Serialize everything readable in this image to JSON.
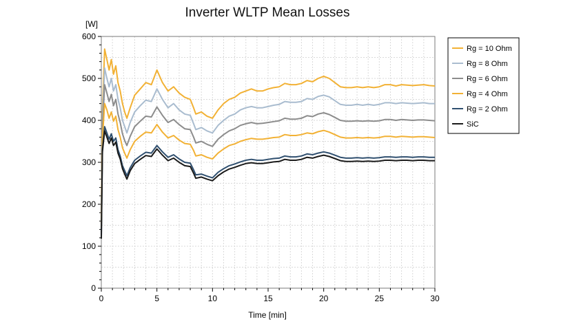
{
  "chart_data": {
    "type": "line",
    "title": "Inverter WLTP Mean Losses",
    "xlabel": "Time [min]",
    "ylabel": "[W]",
    "xlim": [
      0,
      30
    ],
    "ylim": [
      0,
      600
    ],
    "xticks": [
      "0",
      "5",
      "10",
      "15",
      "20",
      "25",
      "30"
    ],
    "yticks": [
      "0",
      "100",
      "200",
      "300",
      "400",
      "500",
      "600"
    ],
    "grid": true,
    "legend_position": "right",
    "x": [
      0,
      0.1,
      0.3,
      0.5,
      0.7,
      0.9,
      1.1,
      1.3,
      1.5,
      1.7,
      1.9,
      2.1,
      2.3,
      2.6,
      3,
      3.5,
      4,
      4.5,
      5,
      5.5,
      6,
      6.5,
      7,
      7.5,
      8,
      8.3,
      8.5,
      9,
      9.5,
      10,
      10.5,
      11,
      11.5,
      12,
      12.5,
      13,
      13.5,
      14,
      14.5,
      15,
      15.5,
      16,
      16.5,
      17,
      17.5,
      18,
      18.5,
      19,
      19.5,
      20,
      20.5,
      21,
      21.5,
      22,
      22.5,
      23,
      23.5,
      24,
      24.5,
      25,
      25.5,
      26,
      26.5,
      27,
      27.5,
      28,
      28.5,
      29,
      29.5,
      30
    ],
    "series": [
      {
        "name": "Rg = 10 Ohm",
        "color": "#f2b134",
        "values": [
          175,
          420,
          570,
          545,
          520,
          545,
          510,
          530,
          490,
          470,
          440,
          420,
          405,
          430,
          460,
          475,
          490,
          485,
          520,
          490,
          470,
          480,
          465,
          455,
          450,
          430,
          415,
          420,
          410,
          405,
          425,
          440,
          450,
          455,
          465,
          470,
          475,
          470,
          470,
          475,
          478,
          480,
          488,
          485,
          485,
          488,
          495,
          492,
          500,
          505,
          500,
          490,
          480,
          478,
          478,
          480,
          478,
          480,
          478,
          480,
          485,
          485,
          482,
          485,
          484,
          483,
          484,
          485,
          483,
          482
        ]
      },
      {
        "name": "Rg = 8 Ohm",
        "color": "#a9bccf",
        "values": [
          165,
          400,
          525,
          500,
          480,
          500,
          470,
          485,
          450,
          430,
          400,
          385,
          370,
          395,
          420,
          435,
          448,
          445,
          475,
          450,
          430,
          440,
          425,
          415,
          412,
          392,
          378,
          383,
          375,
          370,
          388,
          400,
          410,
          415,
          425,
          430,
          433,
          430,
          430,
          433,
          436,
          438,
          445,
          443,
          443,
          445,
          452,
          450,
          457,
          460,
          456,
          447,
          438,
          436,
          436,
          438,
          436,
          438,
          436,
          438,
          442,
          442,
          440,
          442,
          441,
          440,
          441,
          442,
          440,
          440
        ]
      },
      {
        "name": "Rg = 6 Ohm",
        "color": "#8c8c8c",
        "values": [
          155,
          380,
          485,
          465,
          445,
          462,
          435,
          450,
          415,
          395,
          368,
          352,
          340,
          362,
          385,
          398,
          410,
          408,
          432,
          412,
          395,
          402,
          390,
          380,
          378,
          360,
          346,
          350,
          343,
          338,
          355,
          366,
          375,
          380,
          388,
          392,
          395,
          392,
          393,
          395,
          397,
          399,
          405,
          403,
          403,
          405,
          411,
          409,
          415,
          418,
          414,
          407,
          400,
          398,
          398,
          399,
          398,
          399,
          398,
          399,
          402,
          402,
          400,
          402,
          401,
          400,
          401,
          401,
          400,
          399
        ]
      },
      {
        "name": "Rg = 4 Ohm",
        "color": "#f2b134",
        "values": [
          145,
          355,
          440,
          425,
          405,
          420,
          398,
          410,
          378,
          360,
          335,
          322,
          310,
          330,
          350,
          362,
          372,
          370,
          390,
          372,
          358,
          364,
          353,
          345,
          343,
          328,
          315,
          318,
          312,
          308,
          322,
          332,
          340,
          344,
          350,
          354,
          357,
          355,
          355,
          357,
          359,
          360,
          366,
          364,
          364,
          366,
          370,
          368,
          373,
          376,
          372,
          366,
          360,
          358,
          358,
          359,
          358,
          359,
          358,
          359,
          362,
          362,
          360,
          362,
          361,
          360,
          361,
          361,
          360,
          359
        ]
      },
      {
        "name": "Rg = 2 Ohm",
        "color": "#2f4f6f",
        "values": [
          125,
          330,
          385,
          370,
          355,
          368,
          350,
          358,
          330,
          315,
          292,
          280,
          268,
          287,
          305,
          315,
          324,
          322,
          340,
          325,
          312,
          318,
          308,
          300,
          298,
          282,
          270,
          272,
          267,
          263,
          276,
          285,
          292,
          296,
          301,
          305,
          307,
          305,
          305,
          307,
          309,
          310,
          315,
          313,
          313,
          315,
          320,
          318,
          322,
          325,
          322,
          317,
          312,
          310,
          310,
          311,
          310,
          311,
          310,
          311,
          313,
          313,
          312,
          313,
          313,
          312,
          313,
          313,
          312,
          312
        ]
      },
      {
        "name": "SiC",
        "color": "#1a1a1a",
        "values": [
          118,
          325,
          375,
          360,
          345,
          358,
          340,
          348,
          322,
          308,
          285,
          272,
          260,
          280,
          297,
          307,
          316,
          314,
          332,
          317,
          304,
          310,
          300,
          292,
          290,
          274,
          262,
          265,
          260,
          256,
          268,
          277,
          284,
          288,
          293,
          297,
          299,
          297,
          297,
          299,
          301,
          302,
          307,
          305,
          305,
          307,
          312,
          310,
          314,
          317,
          314,
          309,
          304,
          302,
          302,
          303,
          302,
          303,
          302,
          303,
          305,
          305,
          304,
          305,
          305,
          304,
          305,
          305,
          304,
          304
        ]
      }
    ]
  }
}
